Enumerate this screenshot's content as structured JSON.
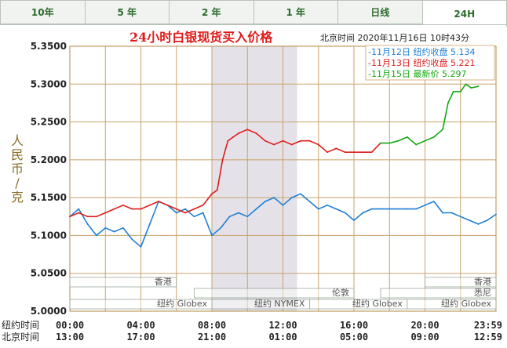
{
  "tabs": [
    {
      "label": "10年",
      "active": false
    },
    {
      "label": "5 年",
      "active": false
    },
    {
      "label": "2 年",
      "active": false
    },
    {
      "label": "1 年",
      "active": false
    },
    {
      "label": "日线",
      "active": false
    },
    {
      "label": "24H",
      "active": true
    }
  ],
  "chart_data": {
    "type": "line",
    "title": "24小时白银现货买入价格",
    "timestamp": "北京时间  2020年11月16日 10时43分",
    "ylabel": "人民币/克",
    "ylim": [
      5.0,
      5.35
    ],
    "yticks": [
      "5.3500",
      "5.3000",
      "5.2500",
      "5.2000",
      "5.1500",
      "5.1000",
      "5.0500",
      "5.0000"
    ],
    "ytick_values": [
      5.35,
      5.3,
      5.25,
      5.2,
      5.15,
      5.1,
      5.05,
      5.0
    ],
    "xlim": [
      0,
      24
    ],
    "x_rows": [
      {
        "label": "纽约时间",
        "ticks": [
          "00:00",
          "04:00",
          "08:00",
          "12:00",
          "16:00",
          "20:00",
          "23:59"
        ]
      },
      {
        "label": "北京时间",
        "ticks": [
          "13:00",
          "17:00",
          "21:00",
          "01:00",
          "05:00",
          "09:00",
          "12:59"
        ]
      }
    ],
    "x_positions": [
      0,
      4,
      8,
      12,
      16,
      20,
      24
    ],
    "grid": true,
    "shaded_band": [
      8,
      12.8
    ],
    "legend_position": "top-right",
    "legend": [
      {
        "text": "-11月12日  纽约收盘 5.134",
        "color": "#1f7fd6"
      },
      {
        "text": "-11月13日  纽约收盘 5.221",
        "color": "#e01b1b"
      },
      {
        "text": "-11月15日   最新价 5.297",
        "color": "#13a813"
      }
    ],
    "sessions": [
      {
        "label": "香港",
        "start": 0,
        "end": 6,
        "row": 0
      },
      {
        "label": "香港",
        "start": 20,
        "end": 24,
        "row": 0
      },
      {
        "label": "伦敦",
        "start": 7,
        "end": 16,
        "row": 1
      },
      {
        "label": "悉尼",
        "start": 17.5,
        "end": 24,
        "row": 1
      },
      {
        "label": "纽约 Globex",
        "start": 0,
        "end": 8,
        "row": 2
      },
      {
        "label": "纽约 NYMEX",
        "start": 8,
        "end": 13.5,
        "row": 2
      },
      {
        "label": "纽约 Globex",
        "start": 13.5,
        "end": 19,
        "row": 2
      },
      {
        "label": "纽约 Globex",
        "start": 19,
        "end": 24,
        "row": 2
      }
    ],
    "series": [
      {
        "color": "#1f7fd6",
        "x": [
          0,
          0.5,
          1,
          1.5,
          2,
          2.5,
          3,
          3.5,
          4,
          4.5,
          5,
          5.5,
          6,
          6.5,
          7,
          7.5,
          8,
          8.5,
          9,
          9.5,
          10,
          10.5,
          11,
          11.5,
          12,
          12.5,
          13,
          13.5,
          14,
          14.5,
          15,
          15.5,
          16,
          16.5,
          17,
          17.5,
          18,
          18.5,
          19,
          19.5,
          20,
          20.5,
          21,
          21.5,
          22,
          22.5,
          23,
          23.5,
          24
        ],
        "y": [
          5.125,
          5.135,
          5.115,
          5.1,
          5.11,
          5.105,
          5.11,
          5.095,
          5.085,
          5.115,
          5.145,
          5.14,
          5.13,
          5.135,
          5.125,
          5.13,
          5.1,
          5.11,
          5.125,
          5.13,
          5.125,
          5.135,
          5.145,
          5.15,
          5.14,
          5.15,
          5.155,
          5.145,
          5.135,
          5.14,
          5.135,
          5.13,
          5.12,
          5.13,
          5.135,
          5.135,
          5.135,
          5.135,
          5.135,
          5.135,
          5.14,
          5.145,
          5.13,
          5.13,
          5.125,
          5.12,
          5.115,
          5.12,
          5.128
        ]
      },
      {
        "color": "#e01b1b",
        "x": [
          0,
          0.5,
          1,
          1.5,
          2,
          2.5,
          3,
          3.5,
          4,
          4.5,
          5,
          5.5,
          6,
          6.5,
          7,
          7.5,
          8,
          8.3,
          8.6,
          8.9,
          9.2,
          9.5,
          10,
          10.5,
          11,
          11.5,
          12,
          12.5,
          13,
          13.5,
          14,
          14.5,
          15,
          15.5,
          16,
          16.5,
          17,
          17.5
        ],
        "y": [
          5.125,
          5.13,
          5.125,
          5.125,
          5.13,
          5.135,
          5.14,
          5.135,
          5.135,
          5.14,
          5.145,
          5.14,
          5.135,
          5.13,
          5.135,
          5.14,
          5.155,
          5.16,
          5.2,
          5.225,
          5.23,
          5.235,
          5.24,
          5.235,
          5.225,
          5.22,
          5.225,
          5.22,
          5.225,
          5.225,
          5.22,
          5.21,
          5.215,
          5.21,
          5.21,
          5.21,
          5.21,
          5.222
        ]
      },
      {
        "color": "#13a813",
        "x": [
          17.5,
          18,
          18.5,
          19,
          19.5,
          20,
          20.5,
          21,
          21.3,
          21.6,
          22,
          22.3,
          22.6,
          23
        ],
        "y": [
          5.222,
          5.222,
          5.225,
          5.23,
          5.22,
          5.225,
          5.23,
          5.24,
          5.275,
          5.29,
          5.29,
          5.3,
          5.295,
          5.297
        ]
      }
    ]
  }
}
